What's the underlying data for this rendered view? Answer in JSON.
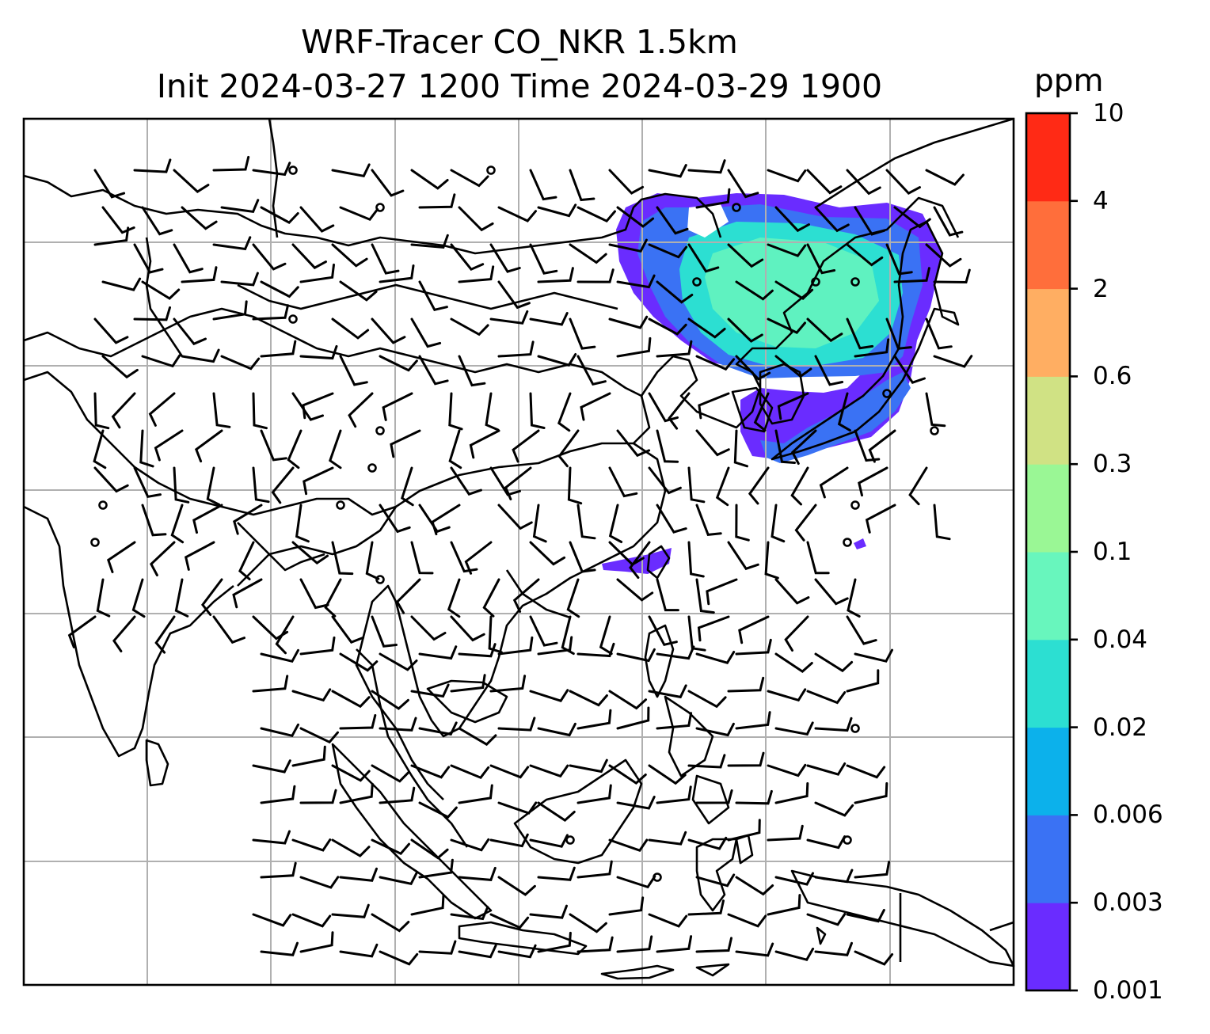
{
  "title": {
    "line1": "WRF-Tracer CO_NKR 1.5km",
    "line2": "Init 2024-03-27 1200 Time 2024-03-29 1900"
  },
  "colorbar": {
    "unit": "ppm",
    "levels": [
      "0.001",
      "0.003",
      "0.006",
      "0.02",
      "0.04",
      "0.1",
      "0.3",
      "0.6",
      "2",
      "4",
      "10"
    ],
    "colors": [
      "#6a2cff",
      "#3a72f4",
      "#0cb1eb",
      "#2cdfd2",
      "#68f6bd",
      "#9af795",
      "#d0e284",
      "#ffae62",
      "#ff6e3b",
      "#ff2a15"
    ]
  },
  "style": {
    "coast": "#000000",
    "grid": "#b0b0b0",
    "barb": "#000000"
  }
}
